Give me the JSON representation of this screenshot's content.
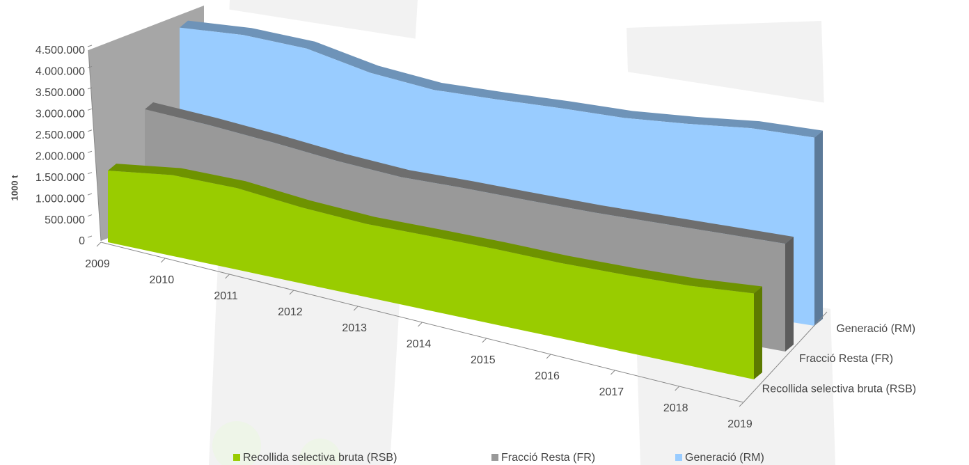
{
  "chart_data": {
    "type": "area3d",
    "y_axis_label": "1000 t",
    "categories": [
      "2009",
      "2010",
      "2011",
      "2012",
      "2013",
      "2014",
      "2015",
      "2016",
      "2017",
      "2018",
      "2019"
    ],
    "series": [
      {
        "name": "Recollida selectiva bruta (RSB)",
        "color": "#99cc00",
        "values": [
          1690000,
          1870000,
          1850000,
          1690000,
          1600000,
          1600000,
          1590000,
          1560000,
          1570000,
          1600000,
          1690000
        ]
      },
      {
        "name": "Fracció Resta (FR)",
        "color": "#999999",
        "values": [
          2940000,
          2790000,
          2610000,
          2410000,
          2270000,
          2240000,
          2190000,
          2150000,
          2140000,
          2130000,
          2120000
        ]
      },
      {
        "name": "Generació (RM)",
        "color": "#99ccff",
        "values": [
          4670000,
          4640000,
          4470000,
          4070000,
          3840000,
          3780000,
          3740000,
          3680000,
          3700000,
          3750000,
          3700000
        ]
      }
    ],
    "ylim": [
      0,
      4500000
    ],
    "yticks": [
      0,
      {
        "value": 500000,
        "label": "500.000"
      },
      {
        "value": 1000000,
        "label": "1.000.000"
      },
      {
        "value": 1500000,
        "label": "1.500.000"
      },
      {
        "value": 2000000,
        "label": "2.000.000"
      },
      {
        "value": 2500000,
        "label": "2.500.000"
      },
      {
        "value": 3000000,
        "label": "3.000.000"
      },
      {
        "value": 3500000,
        "label": "3.500.000"
      },
      {
        "value": 4000000,
        "label": "4.000.000"
      },
      {
        "value": 4500000,
        "label": "4.500.000"
      }
    ],
    "legend": "bottom"
  }
}
